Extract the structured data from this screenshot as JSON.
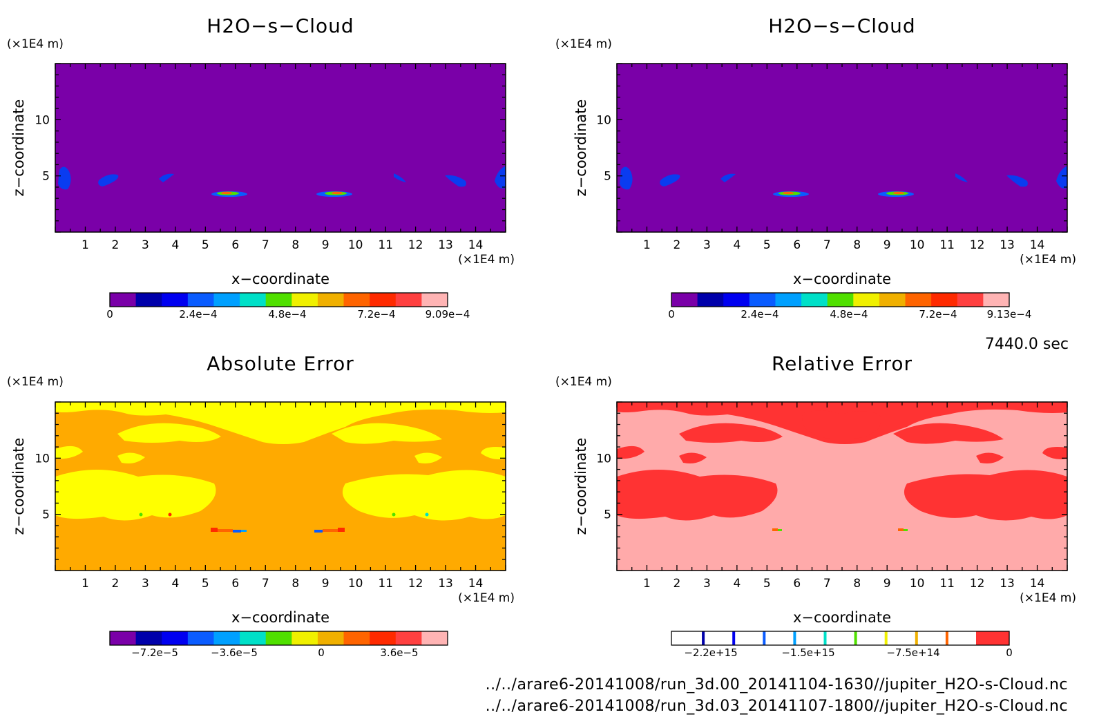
{
  "colors": {
    "levels13": [
      "#7a00a8",
      "#0000aa",
      "#0000f0",
      "#0a5cff",
      "#00a0ff",
      "#00e0c8",
      "#50e000",
      "#f0f000",
      "#f0b000",
      "#ff6400",
      "#ff2a00",
      "#ff4040",
      "#ffb4b4"
    ],
    "purple_bg": "#7a00a8",
    "blob_blue": "#0a3cf0",
    "orange_bg": "#ffaa00",
    "yellow_patch": "#ffff00",
    "pink_bg": "#ffaaaa",
    "red_patch": "#ff3333"
  },
  "axes_text": {
    "x_unit": "(×1E4 m)",
    "z_unit": "(×1E4 m)",
    "x_label": "x−coordinate",
    "y_label": "z−coordinate"
  },
  "chart_data": [
    {
      "type": "heatmap",
      "title": "H2O−s−Cloud",
      "xlabel": "x−coordinate",
      "ylabel": "z−coordinate",
      "x_ticks": [
        1,
        2,
        3,
        4,
        5,
        6,
        7,
        8,
        9,
        10,
        11,
        12,
        13,
        14
      ],
      "y_ticks": [
        5,
        10
      ],
      "xlim": [
        0,
        15
      ],
      "ylim": [
        0,
        15
      ],
      "colorbar_labels": [
        "0",
        "2.4e−4",
        "4.8e−4",
        "7.2e−4",
        "9.09e−4"
      ],
      "colorbar_max": 0.000909
    },
    {
      "type": "heatmap",
      "title": "H2O−s−Cloud",
      "xlabel": "x−coordinate",
      "ylabel": "z−coordinate",
      "x_ticks": [
        1,
        2,
        3,
        4,
        5,
        6,
        7,
        8,
        9,
        10,
        11,
        12,
        13,
        14
      ],
      "y_ticks": [
        5,
        10
      ],
      "xlim": [
        0,
        15
      ],
      "ylim": [
        0,
        15
      ],
      "colorbar_labels": [
        "0",
        "2.4e−4",
        "4.8e−4",
        "7.2e−4",
        "9.13e−4"
      ],
      "colorbar_max": 0.000913
    },
    {
      "type": "heatmap",
      "title": "Absolute Error",
      "xlabel": "x−coordinate",
      "ylabel": "z−coordinate",
      "x_ticks": [
        1,
        2,
        3,
        4,
        5,
        6,
        7,
        8,
        9,
        10,
        11,
        12,
        13,
        14
      ],
      "y_ticks": [
        5,
        10
      ],
      "xlim": [
        0,
        15
      ],
      "ylim": [
        0,
        15
      ],
      "colorbar_labels": [
        "−7.2e−5",
        "−3.6e−5",
        "0",
        "3.6e−5"
      ]
    },
    {
      "type": "heatmap",
      "title": "Relative Error",
      "xlabel": "x−coordinate",
      "ylabel": "z−coordinate",
      "x_ticks": [
        1,
        2,
        3,
        4,
        5,
        6,
        7,
        8,
        9,
        10,
        11,
        12,
        13,
        14
      ],
      "y_ticks": [
        5,
        10
      ],
      "xlim": [
        0,
        15
      ],
      "ylim": [
        0,
        15
      ],
      "colorbar_labels": [
        "−2.2e+15",
        "−1.5e+15",
        "−7.5e+14",
        "0"
      ]
    }
  ],
  "time_label": "7440.0 sec",
  "files": [
    "../../arare6-20141008/run_3d.00_20141104-1630//jupiter_H2O-s-Cloud.nc",
    "../../arare6-20141008/run_3d.03_20141107-1800//jupiter_H2O-s-Cloud.nc"
  ]
}
